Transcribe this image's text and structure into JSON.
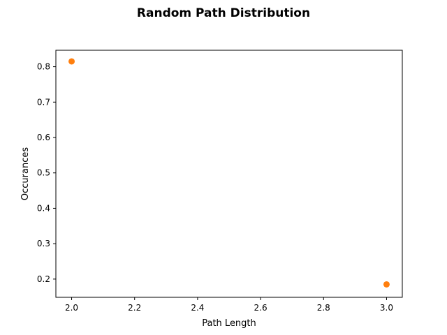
{
  "chart_data": {
    "type": "scatter",
    "title": "Random Path Distribution",
    "xlabel": "Path Length",
    "ylabel": "Occurances",
    "xlim": [
      1.95,
      3.05
    ],
    "ylim": [
      0.1485,
      0.8465
    ],
    "x_ticks": [
      2.0,
      2.2,
      2.4,
      2.6,
      2.8,
      3.0
    ],
    "x_tick_labels": [
      "2.0",
      "2.2",
      "2.4",
      "2.6",
      "2.8",
      "3.0"
    ],
    "y_ticks": [
      0.2,
      0.3,
      0.4,
      0.5,
      0.6,
      0.7,
      0.8
    ],
    "y_tick_labels": [
      "0.2",
      "0.3",
      "0.4",
      "0.5",
      "0.6",
      "0.7",
      "0.8"
    ],
    "grid": false,
    "marker_color": "#ff7f0e",
    "points": [
      {
        "x": 2.0,
        "y": 0.815
      },
      {
        "x": 3.0,
        "y": 0.185
      }
    ]
  }
}
